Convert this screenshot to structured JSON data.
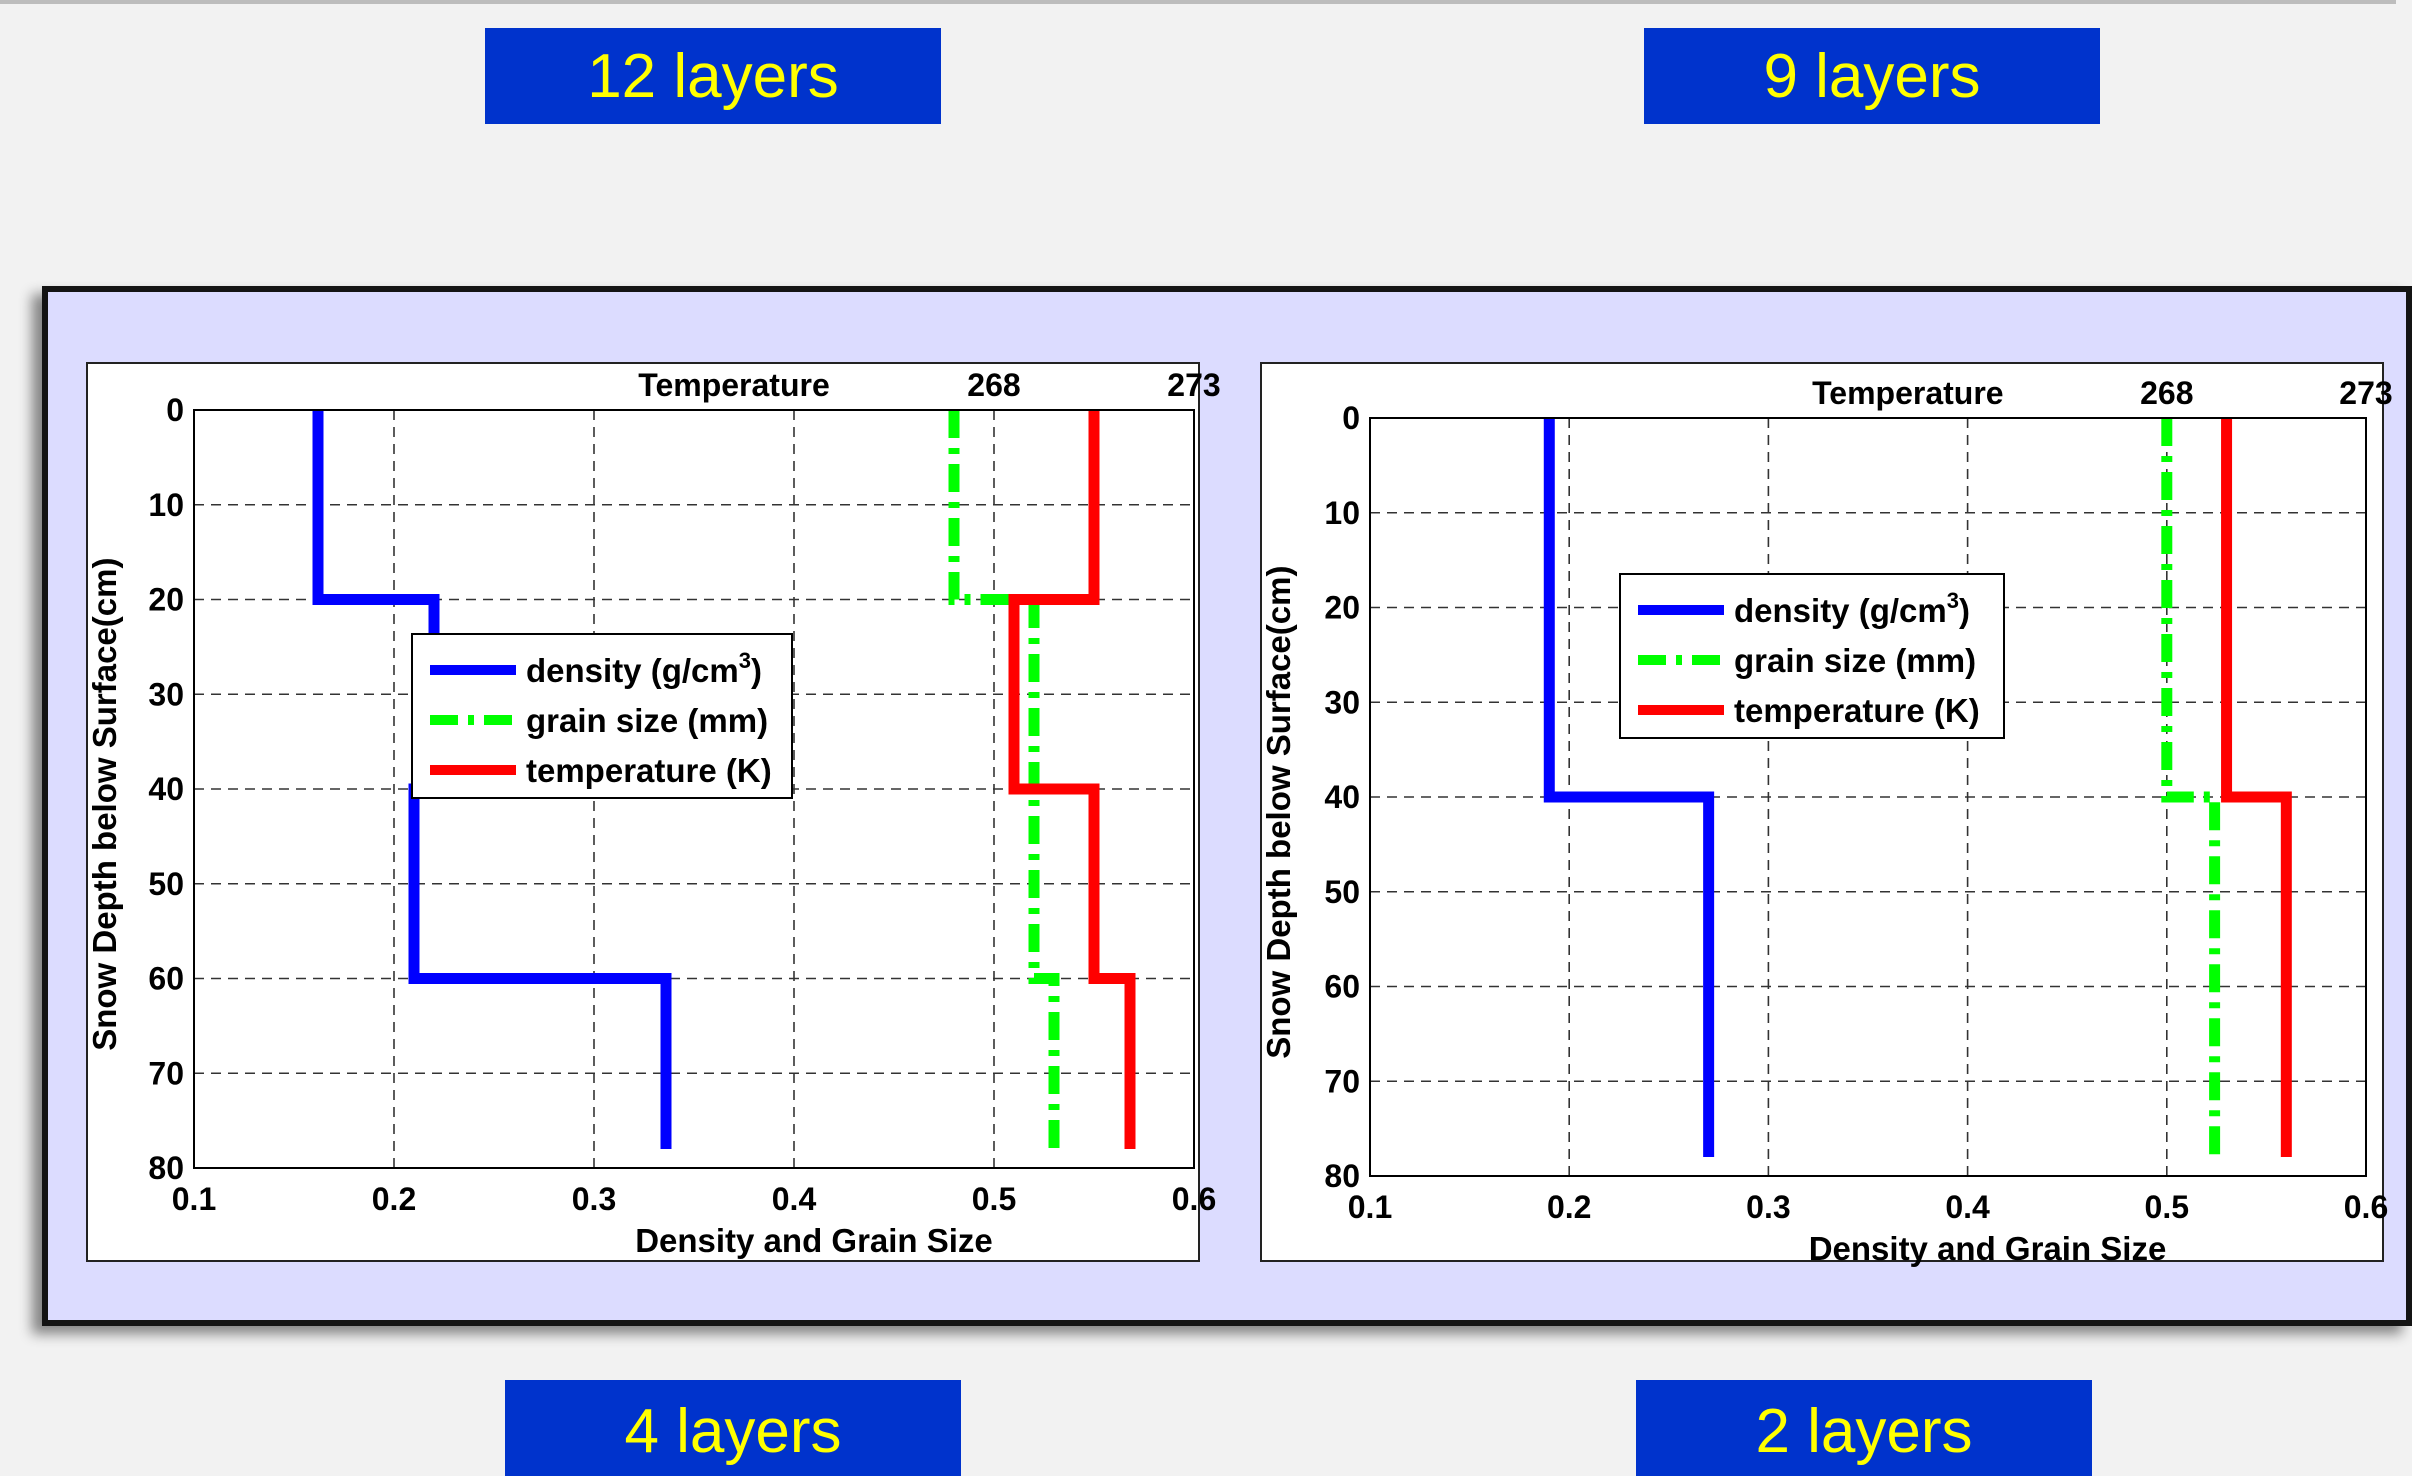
{
  "labels": {
    "top_left": "12 layers",
    "top_right": "9 layers",
    "bottom_left": "4 layers",
    "bottom_right": "2 layers"
  },
  "colors": {
    "label_bg": "#0033cc",
    "label_text": "#ffff00",
    "panel_bg": "#dcdcff",
    "density": "#0000ff",
    "grain": "#00ff00",
    "temperature": "#ff0000"
  },
  "chart_data": [
    {
      "type": "line",
      "title": "Temperature",
      "xlabel": "Density and Grain Size",
      "ylabel": "Snow Depth below Surface(cm)",
      "xlim": [
        0.1,
        0.6
      ],
      "ylim": [
        0,
        80
      ],
      "y_reversed": true,
      "grid": true,
      "legend_position": "center-left",
      "x_ticks": [
        "0.1",
        "0.2",
        "0.3",
        "0.4",
        "0.5",
        "0.6"
      ],
      "y_ticks": [
        "0",
        "10",
        "20",
        "30",
        "40",
        "50",
        "60",
        "70",
        "80"
      ],
      "top_axis_ticks": [
        {
          "label": "268",
          "x": 0.5
        },
        {
          "label": "273",
          "x": 0.6
        }
      ],
      "legend": [
        {
          "text": "density (g/cm",
          "sup": "3",
          "tail": ")"
        },
        {
          "text": "grain size (mm)",
          "sup": "",
          "tail": ""
        },
        {
          "text": "temperature (K)",
          "sup": "",
          "tail": ""
        }
      ],
      "series": [
        {
          "name": "density (g/cm3)",
          "color": "#0000ff",
          "dash": "",
          "points": [
            [
              0.162,
              0
            ],
            [
              0.162,
              20
            ],
            [
              0.22,
              20
            ],
            [
              0.22,
              40
            ],
            [
              0.21,
              40
            ],
            [
              0.21,
              60
            ],
            [
              0.336,
              60
            ],
            [
              0.336,
              78
            ]
          ]
        },
        {
          "name": "grain size (mm)",
          "color": "#00ff00",
          "dash": "28,10,6,10",
          "points": [
            [
              0.48,
              0
            ],
            [
              0.48,
              20
            ],
            [
              0.52,
              20
            ],
            [
              0.52,
              60
            ],
            [
              0.53,
              60
            ],
            [
              0.53,
              78
            ]
          ]
        },
        {
          "name": "temperature (K)",
          "color": "#ff0000",
          "dash": "",
          "points": [
            [
              0.55,
              0
            ],
            [
              0.55,
              20
            ],
            [
              0.51,
              20
            ],
            [
              0.51,
              40
            ],
            [
              0.55,
              40
            ],
            [
              0.55,
              60
            ],
            [
              0.568,
              60
            ],
            [
              0.568,
              78
            ]
          ]
        }
      ]
    },
    {
      "type": "line",
      "title": "Temperature",
      "xlabel": "Density and Grain Size",
      "ylabel": "Snow Depth below Surface(cm)",
      "xlim": [
        0.1,
        0.6
      ],
      "ylim": [
        0,
        80
      ],
      "y_reversed": true,
      "grid": true,
      "legend_position": "upper-center",
      "x_ticks": [
        "0.1",
        "0.2",
        "0.3",
        "0.4",
        "0.5",
        "0.6"
      ],
      "y_ticks": [
        "0",
        "10",
        "20",
        "30",
        "40",
        "50",
        "60",
        "70",
        "80"
      ],
      "top_axis_ticks": [
        {
          "label": "268",
          "x": 0.5
        },
        {
          "label": "273",
          "x": 0.6
        }
      ],
      "legend": [
        {
          "text": "density (g/cm",
          "sup": "3",
          "tail": ")"
        },
        {
          "text": "grain size (mm)",
          "sup": "",
          "tail": ""
        },
        {
          "text": "temperature (K)",
          "sup": "",
          "tail": ""
        }
      ],
      "series": [
        {
          "name": "density (g/cm3)",
          "color": "#0000ff",
          "dash": "",
          "points": [
            [
              0.19,
              0
            ],
            [
              0.19,
              40
            ],
            [
              0.27,
              40
            ],
            [
              0.27,
              78
            ]
          ]
        },
        {
          "name": "grain size (mm)",
          "color": "#00ff00",
          "dash": "28,10,6,10",
          "points": [
            [
              0.5,
              0
            ],
            [
              0.5,
              40
            ],
            [
              0.524,
              40
            ],
            [
              0.524,
              78
            ]
          ]
        },
        {
          "name": "temperature (K)",
          "color": "#ff0000",
          "dash": "",
          "points": [
            [
              0.53,
              0
            ],
            [
              0.53,
              40
            ],
            [
              0.56,
              40
            ],
            [
              0.56,
              78
            ]
          ]
        }
      ]
    }
  ]
}
